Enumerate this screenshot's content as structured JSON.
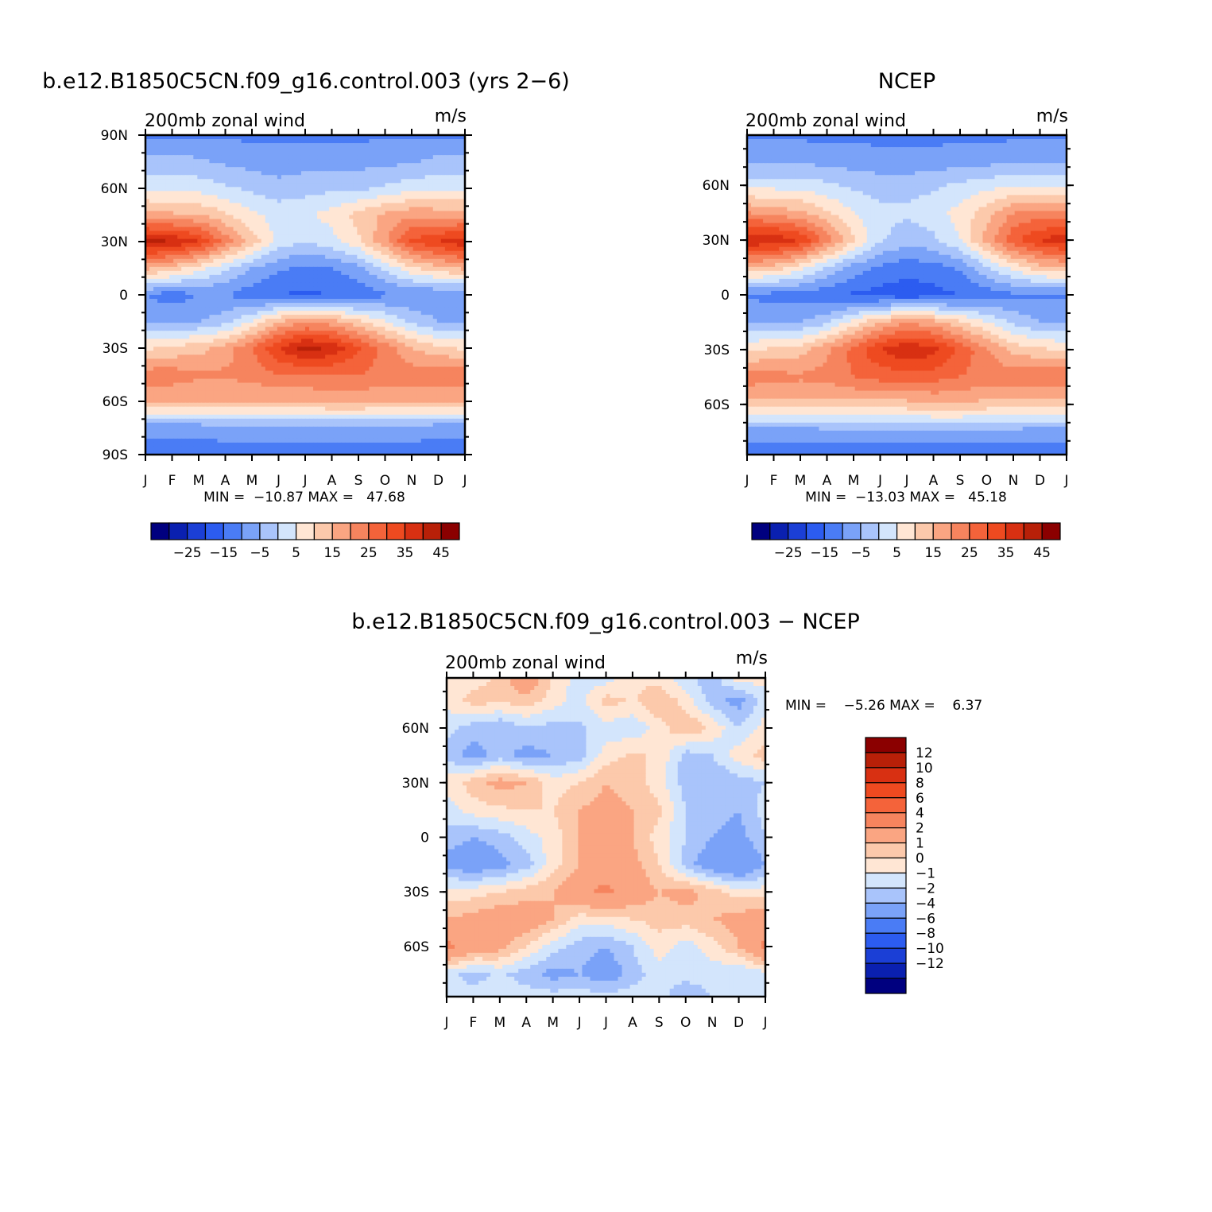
{
  "chart_data": [
    {
      "type": "heatmap",
      "title": "b.e12.B1850C5CN.f09_g16.control.003 (yrs 2−6)",
      "subtitle_left": "200mb zonal wind",
      "subtitle_right": "m/s",
      "x_ticks": [
        "J",
        "F",
        "M",
        "A",
        "M",
        "J",
        "J",
        "A",
        "S",
        "O",
        "N",
        "D",
        "J"
      ],
      "y_ticks": [
        "90N",
        "60N",
        "30N",
        "0",
        "30S",
        "60S",
        "90S"
      ],
      "ylim": [
        -90,
        90
      ],
      "min_max_text": "MIN =  −10.87 MAX =   47.68",
      "min": -10.87,
      "max": 47.68,
      "colorbar_labels": [
        "−25",
        "−15",
        "−5",
        "5",
        "15",
        "25",
        "35",
        "45"
      ],
      "colorbar_levels": [
        -30,
        -25,
        -20,
        -15,
        -10,
        -5,
        0,
        5,
        10,
        15,
        20,
        25,
        30,
        35,
        40,
        45,
        50
      ],
      "grid_lat": [
        90,
        75,
        60,
        45,
        30,
        15,
        0,
        -15,
        -30,
        -45,
        -60,
        -75,
        -90
      ],
      "grid_z": [
        [
          -6,
          -6,
          -6,
          -6,
          -6,
          -6,
          -6,
          -6,
          -6,
          -6,
          -6,
          -6,
          -6
        ],
        [
          2,
          2,
          1,
          -1,
          -2,
          -3,
          -2,
          -2,
          -2,
          -1,
          -1,
          2,
          2
        ],
        [
          9,
          8,
          8,
          6,
          4,
          2,
          3,
          4,
          4,
          6,
          8,
          9,
          9
        ],
        [
          22,
          21,
          20,
          16,
          11,
          8,
          9,
          12,
          17,
          21,
          24,
          23,
          22
        ],
        [
          47,
          45,
          40,
          28,
          18,
          8,
          5,
          8,
          14,
          24,
          36,
          40,
          44
        ],
        [
          21,
          18,
          12,
          6,
          0,
          -4,
          -6,
          -5,
          -2,
          6,
          14,
          18,
          21
        ],
        [
          -5,
          -8,
          -5,
          -5,
          -8,
          -10,
          -11,
          -10,
          -8,
          -6,
          -5,
          -5,
          -5
        ],
        [
          0,
          0,
          0,
          3,
          10,
          20,
          24,
          22,
          16,
          10,
          4,
          0,
          0
        ],
        [
          14,
          16,
          18,
          22,
          30,
          40,
          47,
          44,
          36,
          28,
          20,
          16,
          14
        ],
        [
          28,
          28,
          26,
          26,
          27,
          30,
          30,
          30,
          30,
          28,
          28,
          30,
          30
        ],
        [
          20,
          20,
          20,
          20,
          20,
          20,
          20,
          22,
          22,
          20,
          20,
          20,
          20
        ],
        [
          -3,
          -3,
          -3,
          -2,
          -2,
          -2,
          -2,
          -2,
          -2,
          -2,
          -2,
          -3,
          -3
        ],
        [
          -8,
          -8,
          -8,
          -8,
          -8,
          -8,
          -8,
          -8,
          -8,
          -8,
          -8,
          -8,
          -8
        ]
      ]
    },
    {
      "type": "heatmap",
      "title": "NCEP",
      "subtitle_left": "200mb zonal wind",
      "subtitle_right": "m/s",
      "x_ticks": [
        "J",
        "F",
        "M",
        "A",
        "M",
        "J",
        "J",
        "A",
        "S",
        "O",
        "N",
        "D",
        "J"
      ],
      "y_ticks": [
        "60N",
        "30N",
        "0",
        "30S",
        "60S"
      ],
      "ylim": [
        -87.5,
        87.5
      ],
      "min_max_text": "MIN =  −13.03 MAX =   45.18",
      "min": -13.03,
      "max": 45.18,
      "colorbar_labels": [
        "−25",
        "−15",
        "−5",
        "5",
        "15",
        "25",
        "35",
        "45"
      ],
      "colorbar_levels": [
        -30,
        -25,
        -20,
        -15,
        -10,
        -5,
        0,
        5,
        10,
        15,
        20,
        25,
        30,
        35,
        40,
        45,
        50
      ],
      "grid_lat": [
        87.5,
        75,
        60,
        45,
        30,
        15,
        0,
        -15,
        -30,
        -45,
        -60,
        -75,
        -87.5
      ],
      "grid_z": [
        [
          -6,
          -6,
          -6,
          -6,
          -6,
          -6,
          -6,
          -6,
          -6,
          -6,
          -6,
          -6,
          -6
        ],
        [
          -2,
          -2,
          -2,
          -3,
          -3,
          -4,
          -4,
          -4,
          -3,
          -3,
          -2,
          -2,
          -2
        ],
        [
          8,
          8,
          8,
          6,
          4,
          3,
          3,
          4,
          6,
          8,
          9,
          9,
          8
        ],
        [
          25,
          23,
          21,
          16,
          10,
          6,
          6,
          8,
          12,
          18,
          25,
          27,
          25
        ],
        [
          45,
          44,
          40,
          28,
          16,
          6,
          2,
          4,
          10,
          22,
          34,
          40,
          44
        ],
        [
          20,
          18,
          12,
          5,
          -2,
          -6,
          -8,
          -7,
          -4,
          4,
          12,
          18,
          20
        ],
        [
          -6,
          -7,
          -7,
          -9,
          -11,
          -12,
          -13,
          -12,
          -10,
          -8,
          -6,
          -6,
          -6
        ],
        [
          0,
          0,
          0,
          4,
          12,
          20,
          24,
          22,
          16,
          10,
          4,
          0,
          0
        ],
        [
          14,
          16,
          18,
          24,
          32,
          40,
          45,
          42,
          34,
          26,
          18,
          16,
          14
        ],
        [
          28,
          27,
          26,
          27,
          30,
          32,
          32,
          32,
          30,
          28,
          28,
          30,
          30
        ],
        [
          18,
          18,
          18,
          18,
          18,
          18,
          18,
          20,
          20,
          18,
          18,
          18,
          18
        ],
        [
          -3,
          -3,
          -3,
          -2,
          -2,
          -2,
          -2,
          -2,
          -2,
          -2,
          -2,
          -3,
          -3
        ],
        [
          -8,
          -8,
          -8,
          -8,
          -8,
          -8,
          -8,
          -8,
          -8,
          -8,
          -8,
          -8,
          -8
        ]
      ]
    },
    {
      "type": "heatmap",
      "title": "b.e12.B1850C5CN.f09_g16.control.003 − NCEP",
      "subtitle_left": "200mb zonal wind",
      "subtitle_right": "m/s",
      "x_ticks": [
        "J",
        "F",
        "M",
        "A",
        "M",
        "J",
        "J",
        "A",
        "S",
        "O",
        "N",
        "D",
        "J"
      ],
      "y_ticks": [
        "60N",
        "30N",
        "0",
        "30S",
        "60S"
      ],
      "ylim": [
        -87.5,
        87.5
      ],
      "min_max_text": "MIN =    −5.26 MAX =    6.37",
      "min": -5.26,
      "max": 6.37,
      "colorbar_labels": [
        "12",
        "10",
        "8",
        "6",
        "4",
        "2",
        "1",
        "0",
        "−1",
        "−2",
        "−4",
        "−6",
        "−8",
        "−10",
        "−12"
      ],
      "colorbar_levels": [
        -14,
        -12,
        -10,
        -8,
        -6,
        -4,
        -2,
        -1,
        0,
        1,
        2,
        4,
        6,
        8,
        10,
        12,
        14
      ],
      "grid_lat": [
        87.5,
        75,
        60,
        45,
        30,
        15,
        0,
        -15,
        -30,
        -45,
        -60,
        -75,
        -87.5
      ],
      "grid_z": [
        [
          0.5,
          0.5,
          1.2,
          3.5,
          0.8,
          -0.5,
          -0.6,
          0.8,
          0.5,
          -0.8,
          -1.5,
          0.5,
          0.5
        ],
        [
          0.3,
          1.5,
          1.2,
          1.5,
          0.5,
          -0.5,
          1.5,
          0.8,
          2.0,
          0.5,
          -1.5,
          -2.5,
          -0.5
        ],
        [
          -0.5,
          -1.5,
          -2.0,
          -1.0,
          -1.5,
          -1.2,
          -0.5,
          -0.8,
          0.5,
          2.0,
          0.8,
          -1.0,
          0.5
        ],
        [
          -1.5,
          -2.5,
          -1.5,
          -2.5,
          -2.0,
          -1.5,
          0.5,
          1.2,
          0.8,
          -1.5,
          -1.0,
          0.5,
          1.5
        ],
        [
          0.5,
          1.5,
          2.5,
          2.0,
          0.5,
          1.0,
          2.0,
          1.5,
          0.5,
          -1.5,
          -2.0,
          -1.5,
          -1.0
        ],
        [
          -0.5,
          0.5,
          0.8,
          1.0,
          1.0,
          2.0,
          2.5,
          2.0,
          1.2,
          -1.0,
          -1.5,
          -2.0,
          -0.5
        ],
        [
          -1.5,
          -2.0,
          -1.5,
          -0.5,
          0.5,
          2.0,
          2.5,
          2.0,
          0.5,
          -1.0,
          -2.0,
          -2.5,
          -1.0
        ],
        [
          -2.5,
          -3.0,
          -2.5,
          -1.5,
          0.5,
          2.0,
          3.0,
          2.5,
          1.0,
          -1.5,
          -3.0,
          -4.0,
          -2.0
        ],
        [
          0.5,
          0.5,
          1.0,
          1.5,
          2.0,
          3.5,
          4.5,
          3.0,
          2.0,
          2.5,
          1.5,
          0.5,
          0.5
        ],
        [
          2.0,
          2.5,
          3.0,
          3.0,
          2.0,
          0.5,
          0.5,
          1.0,
          1.5,
          1.5,
          2.0,
          2.5,
          3.0
        ],
        [
          4.5,
          3.0,
          2.5,
          1.0,
          -0.5,
          -1.5,
          -2.0,
          -1.0,
          0.5,
          -0.5,
          0.5,
          2.0,
          4.5
        ],
        [
          -0.5,
          -1.5,
          -0.8,
          -1.5,
          -2.5,
          -2.0,
          -3.0,
          -1.5,
          -0.5,
          -0.5,
          -0.5,
          -1.0,
          -0.5
        ],
        [
          -1.0,
          -0.5,
          -0.5,
          -0.5,
          -0.5,
          -0.5,
          -0.5,
          -0.5,
          -0.5,
          -2.0,
          -1.0,
          -0.5,
          -0.5
        ]
      ]
    }
  ],
  "palette": [
    "#00007f",
    "#0a20b0",
    "#1b3fd6",
    "#2c5cf0",
    "#4a7cf5",
    "#7aa2f8",
    "#a9c4fb",
    "#d3e5fc",
    "#ffe6d4",
    "#fcc9ab",
    "#faa582",
    "#f6845e",
    "#f4633a",
    "#ee4a20",
    "#d83012",
    "#b82008",
    "#8b0000"
  ]
}
